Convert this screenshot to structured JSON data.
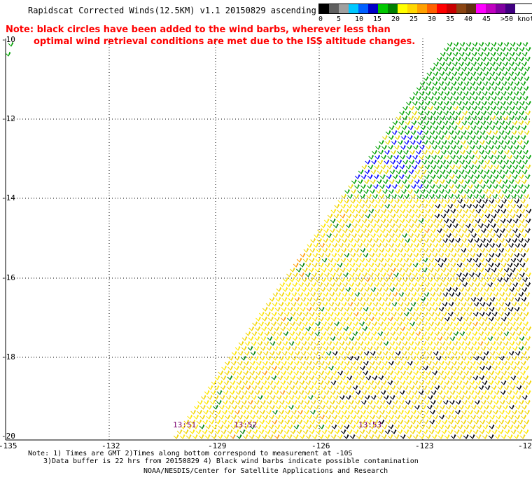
{
  "title": "Rapidscat Corrected Winds(12.5KM) v1.1 20150829 ascending",
  "note": {
    "line1": "Note: black circles have been added to the wind barbs, wherever less than",
    "line2": "optimal wind retrieval conditions are met due to the ISS altitude changes."
  },
  "legend": {
    "colors": [
      "#000000",
      "#606060",
      "#a0a0a0",
      "#00c8ff",
      "#0060ff",
      "#0000c8",
      "#00c800",
      "#008000",
      "#ffff00",
      "#ffd700",
      "#ffa000",
      "#ff6000",
      "#ff0000",
      "#c80000",
      "#8b4513",
      "#603010",
      "#ff00ff",
      "#c000c0",
      "#8000a0",
      "#400080"
    ],
    "labels": [
      "0",
      "5",
      "10",
      "15",
      "20",
      "25",
      "30",
      "35",
      "40",
      "45",
      ">50 knots"
    ]
  },
  "axes": {
    "x_ticks": [
      "-135",
      "-132",
      "-129",
      "-126",
      "-123",
      "-12"
    ],
    "y_ticks": [
      "-10",
      "-12",
      "-14",
      "-16",
      "-18",
      "-20"
    ]
  },
  "time_labels": [
    "13:51",
    "13:52",
    "13:53"
  ],
  "footer": {
    "line1": "Note: 1) Times are GMT 2)Times along bottom correspond to measurement at -10S",
    "line2": "3)Data buffer is 22 hrs from 20150829 4) Black wind barbs indicate possible contamination",
    "line3": "NOAA/NESDIS/Center for Satellite Applications and Research"
  }
}
